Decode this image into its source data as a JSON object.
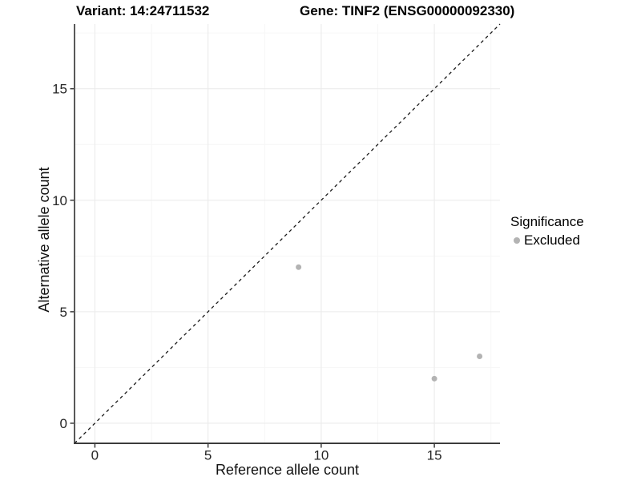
{
  "chart_data": {
    "type": "scatter",
    "title_left": "Variant: 14:24711532",
    "title_right": "Gene: TINF2 (ENSG00000092330)",
    "xlabel": "Reference allele count",
    "ylabel": "Alternative allele count",
    "xlim": [
      -0.9,
      17.9
    ],
    "ylim": [
      -0.9,
      17.9
    ],
    "x_major_ticks": [
      0,
      5,
      10,
      15
    ],
    "y_major_ticks": [
      0,
      5,
      10,
      15
    ],
    "x_minor_ticks": [
      2.5,
      7.5,
      12.5,
      17.5
    ],
    "y_minor_ticks": [
      2.5,
      7.5,
      12.5,
      17.5
    ],
    "grid": true,
    "legend_position": "right",
    "identity_line": {
      "style": "dashed",
      "from": -0.9,
      "to": 17.9
    },
    "series": [
      {
        "name": "Excluded",
        "points": [
          {
            "x": 9,
            "y": 7
          },
          {
            "x": 15,
            "y": 2
          },
          {
            "x": 17,
            "y": 3
          }
        ]
      }
    ]
  },
  "legend": {
    "title": "Significance",
    "items": [
      {
        "label": "Excluded",
        "color": "#b3b3b3",
        "marker": "circle"
      }
    ]
  },
  "colors": {
    "background": "#ffffff",
    "grid_major": "#ebebeb",
    "grid_minor": "#f6f6f6",
    "axis_line": "#3c3c3c",
    "tick_mark": "#3c3c3c",
    "tick_label": "#262626",
    "identity_line": "#1a1a1a",
    "point": "#b3b3b3"
  }
}
